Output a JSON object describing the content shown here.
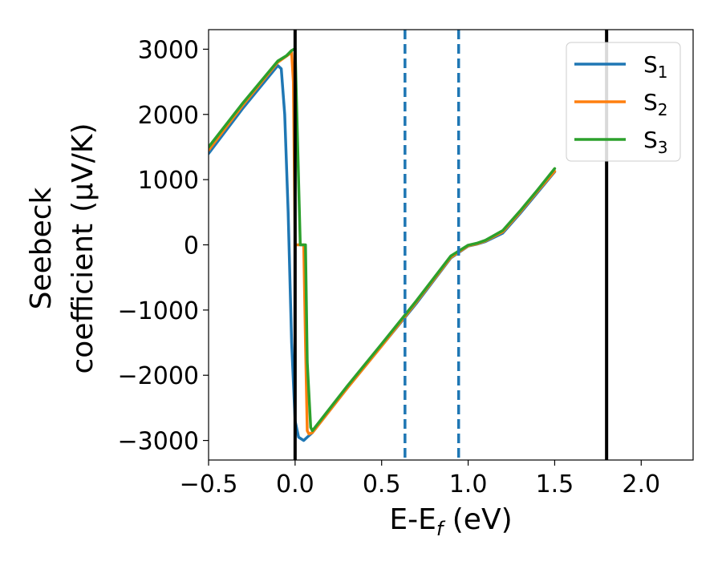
{
  "chart_data": {
    "type": "line",
    "xlabel": "E-E_f (eV)",
    "xlabel_parts": {
      "base": "E-E",
      "sub": "f",
      "rest": " (eV)"
    },
    "ylabel_line1": "Seebeck",
    "ylabel_line2": "coefficient",
    "ylabel_unit": "(μV/K)",
    "xlim": [
      -0.5,
      2.3
    ],
    "ylim": [
      -3300,
      3300
    ],
    "xticks": [
      -0.5,
      0.0,
      0.5,
      1.0,
      1.5,
      2.0
    ],
    "xtick_labels": [
      "−0.5",
      "0.0",
      "0.5",
      "1.0",
      "1.5",
      "2.0"
    ],
    "yticks": [
      -3000,
      -2000,
      -1000,
      0,
      1000,
      2000,
      3000
    ],
    "ytick_labels": [
      "−3000",
      "−2000",
      "−1000",
      "0",
      "1000",
      "2000",
      "3000"
    ],
    "grid": false,
    "legend_position": "top-right",
    "vlines": [
      {
        "x": 0.0,
        "color": "#000000",
        "style": "solid"
      },
      {
        "x": 1.8,
        "color": "#000000",
        "style": "solid"
      },
      {
        "x": 0.635,
        "color": "#1f77b4",
        "style": "dashed"
      },
      {
        "x": 0.945,
        "color": "#1f77b4",
        "style": "dashed"
      }
    ],
    "series": [
      {
        "name": "S1",
        "label_base": "S",
        "label_sub": "1",
        "color": "#1f77b4",
        "x": [
          -0.5,
          -0.3,
          -0.1,
          -0.08,
          -0.06,
          -0.04,
          -0.02,
          0.0,
          0.02,
          0.05,
          0.07,
          0.1,
          0.3,
          0.5,
          0.7,
          0.9,
          1.0,
          1.05,
          1.1,
          1.2,
          1.3,
          1.4,
          1.5
        ],
        "y": [
          1400,
          2100,
          2750,
          2700,
          2000,
          500,
          -1500,
          -2700,
          -2950,
          -3000,
          -2950,
          -2880,
          -2200,
          -1550,
          -900,
          -200,
          -20,
          10,
          50,
          180,
          480,
          800,
          1120
        ]
      },
      {
        "name": "S2",
        "label_base": "S",
        "label_sub": "2",
        "color": "#ff7f0e",
        "x": [
          -0.5,
          -0.3,
          -0.1,
          -0.02,
          -0.01,
          0.0,
          0.03,
          0.05,
          0.06,
          0.07,
          0.08,
          0.1,
          0.3,
          0.5,
          0.7,
          0.9,
          1.0,
          1.05,
          1.1,
          1.2,
          1.3,
          1.4,
          1.5
        ],
        "y": [
          1450,
          2150,
          2800,
          2950,
          2500,
          0,
          0,
          0,
          -1500,
          -2850,
          -2900,
          -2880,
          -2200,
          -1550,
          -880,
          -190,
          -15,
          15,
          60,
          200,
          500,
          820,
          1130
        ]
      },
      {
        "name": "S3",
        "label_base": "S",
        "label_sub": "3",
        "color": "#2ca02c",
        "x": [
          -0.5,
          -0.3,
          -0.1,
          -0.05,
          -0.02,
          0.0,
          0.03,
          0.05,
          0.06,
          0.07,
          0.09,
          0.1,
          0.3,
          0.5,
          0.7,
          0.9,
          1.0,
          1.05,
          1.1,
          1.2,
          1.3,
          1.4,
          1.5
        ],
        "y": [
          1500,
          2180,
          2820,
          2900,
          2980,
          3010,
          0,
          0,
          0,
          -1800,
          -2800,
          -2850,
          -2170,
          -1520,
          -860,
          -170,
          -5,
          25,
          70,
          220,
          520,
          840,
          1170
        ]
      }
    ]
  }
}
